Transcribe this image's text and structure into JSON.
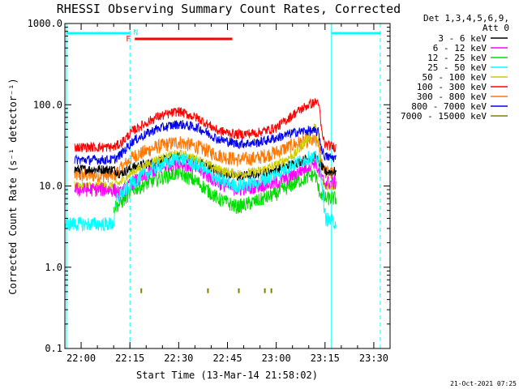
{
  "chart_data": {
    "type": "line",
    "title": "RHESSI Observing Summary Count Rates, Corrected",
    "ylabel": "Corrected Count Rate (s⁻¹ detector⁻¹)",
    "xlabel": "Start Time (13-Mar-14 21:58:02)",
    "x_unit": "minutes after 21:58:02",
    "xlim": [
      -3,
      97
    ],
    "ylim": [
      0.1,
      1000
    ],
    "yscale": "log",
    "x_ticks": [
      {
        "label": "22:00",
        "t": 2
      },
      {
        "label": "22:15",
        "t": 17
      },
      {
        "label": "22:30",
        "t": 32
      },
      {
        "label": "22:45",
        "t": 47
      },
      {
        "label": "23:00",
        "t": 62
      },
      {
        "label": "23:15",
        "t": 77
      },
      {
        "label": "23:30",
        "t": 92
      }
    ],
    "y_ticks": [
      {
        "label": "1000.0",
        "v": 1000
      },
      {
        "label": "100.0",
        "v": 100
      },
      {
        "label": "10.0",
        "v": 10
      },
      {
        "label": "1.0",
        "v": 1
      },
      {
        "label": "0.1",
        "v": 0.1
      }
    ],
    "legend_header": [
      "Det 1,3,4,5,6,9,",
      "Att 0"
    ],
    "data_start": 13,
    "data_end": 80.5,
    "series": [
      {
        "name": "3 - 6 keV",
        "color": "#000000",
        "points": [
          [
            0,
            16
          ],
          [
            12,
            16
          ],
          [
            14,
            14
          ],
          [
            18,
            17
          ],
          [
            25,
            20
          ],
          [
            32,
            23
          ],
          [
            38,
            20
          ],
          [
            44,
            15
          ],
          [
            50,
            13
          ],
          [
            56,
            14
          ],
          [
            62,
            16
          ],
          [
            68,
            19
          ],
          [
            72,
            22
          ],
          [
            74,
            23
          ],
          [
            75,
            20
          ],
          [
            76,
            17
          ],
          [
            77,
            15
          ],
          [
            80.5,
            15
          ]
        ]
      },
      {
        "name": "6 - 12 keV",
        "color": "#ff00ff",
        "points": [
          [
            0,
            9
          ],
          [
            12,
            9
          ],
          [
            14,
            8
          ],
          [
            18,
            11
          ],
          [
            25,
            16
          ],
          [
            32,
            20
          ],
          [
            38,
            16
          ],
          [
            44,
            11
          ],
          [
            50,
            9
          ],
          [
            56,
            10
          ],
          [
            62,
            11
          ],
          [
            68,
            14
          ],
          [
            72,
            18
          ],
          [
            74,
            20
          ],
          [
            75,
            15
          ],
          [
            76,
            12
          ],
          [
            77,
            11
          ],
          [
            80.5,
            11
          ]
        ]
      },
      {
        "name": "12 - 25 keV",
        "color": "#00dd00",
        "points": [
          [
            12,
            5.5
          ],
          [
            14,
            6
          ],
          [
            18,
            9
          ],
          [
            25,
            12
          ],
          [
            32,
            14.5
          ],
          [
            38,
            11
          ],
          [
            44,
            7
          ],
          [
            50,
            5.5
          ],
          [
            56,
            6.5
          ],
          [
            62,
            8
          ],
          [
            68,
            11
          ],
          [
            72,
            13
          ],
          [
            74,
            14
          ],
          [
            75,
            9
          ],
          [
            77,
            7
          ],
          [
            80.5,
            7
          ]
        ]
      },
      {
        "name": "25 - 50 keV",
        "color": "#00ffff",
        "points": [
          [
            -3,
            3.4
          ],
          [
            12,
            3.4
          ],
          [
            13,
            7
          ],
          [
            18,
            11
          ],
          [
            25,
            17
          ],
          [
            32,
            22
          ],
          [
            38,
            18
          ],
          [
            44,
            12
          ],
          [
            50,
            10
          ],
          [
            56,
            11
          ],
          [
            62,
            14
          ],
          [
            68,
            19
          ],
          [
            72,
            22
          ],
          [
            75,
            22
          ],
          [
            76,
            12
          ],
          [
            77,
            4
          ],
          [
            80.5,
            3.5
          ]
        ]
      },
      {
        "name": "50 - 100 keV",
        "color": "#cccc00",
        "points": [
          [
            0,
            10
          ],
          [
            12,
            10
          ],
          [
            14,
            11
          ],
          [
            18,
            15
          ],
          [
            25,
            21
          ],
          [
            32,
            25
          ],
          [
            38,
            21
          ],
          [
            44,
            16
          ],
          [
            50,
            14
          ],
          [
            56,
            15
          ],
          [
            62,
            18
          ],
          [
            68,
            25
          ],
          [
            72,
            40
          ],
          [
            74,
            55
          ],
          [
            75,
            30
          ],
          [
            76,
            12
          ],
          [
            77,
            10
          ],
          [
            80.5,
            10
          ]
        ]
      },
      {
        "name": "100 - 300 keV",
        "color": "#ff0000",
        "points": [
          [
            0,
            30
          ],
          [
            12,
            30
          ],
          [
            14,
            33
          ],
          [
            18,
            48
          ],
          [
            25,
            70
          ],
          [
            32,
            83
          ],
          [
            38,
            68
          ],
          [
            44,
            48
          ],
          [
            50,
            43
          ],
          [
            56,
            45
          ],
          [
            62,
            52
          ],
          [
            68,
            80
          ],
          [
            72,
            100
          ],
          [
            75,
            110
          ],
          [
            76,
            45
          ],
          [
            77,
            32
          ],
          [
            80.5,
            30
          ]
        ]
      },
      {
        "name": "300 - 800 keV",
        "color": "#ff7700",
        "points": [
          [
            0,
            13.5
          ],
          [
            12,
            13.5
          ],
          [
            14,
            16
          ],
          [
            18,
            23
          ],
          [
            25,
            30
          ],
          [
            32,
            35
          ],
          [
            38,
            30
          ],
          [
            44,
            24
          ],
          [
            50,
            21
          ],
          [
            56,
            22
          ],
          [
            62,
            26
          ],
          [
            68,
            33
          ],
          [
            72,
            36
          ],
          [
            75,
            35
          ],
          [
            76,
            20
          ],
          [
            77,
            15
          ],
          [
            80.5,
            14
          ]
        ]
      },
      {
        "name": "800 - 7000 keV",
        "color": "#0000ee",
        "points": [
          [
            0,
            21
          ],
          [
            12,
            21
          ],
          [
            14,
            24
          ],
          [
            18,
            36
          ],
          [
            25,
            50
          ],
          [
            32,
            58
          ],
          [
            38,
            52
          ],
          [
            44,
            38
          ],
          [
            50,
            33
          ],
          [
            56,
            34
          ],
          [
            62,
            39
          ],
          [
            68,
            46
          ],
          [
            72,
            48
          ],
          [
            75,
            46
          ],
          [
            76,
            28
          ],
          [
            77,
            23
          ],
          [
            80.5,
            22
          ]
        ]
      },
      {
        "name": "7000 - 15000 keV",
        "color": "#808000",
        "points": []
      }
    ],
    "attenuator_panel": {
      "left": {
        "label": "N",
        "y": 790
      },
      "right": {
        "label": "",
        "y": 790
      }
    },
    "flare_bar": {
      "label": "F",
      "t_start": 18.5,
      "t_end": 48.5,
      "y": 570
    },
    "saa_vertical_t": [
      17,
      94
    ],
    "night_vertical_t": [
      -2.5,
      79
    ],
    "footer_stamp": "21-Oct-2021 07:25"
  }
}
